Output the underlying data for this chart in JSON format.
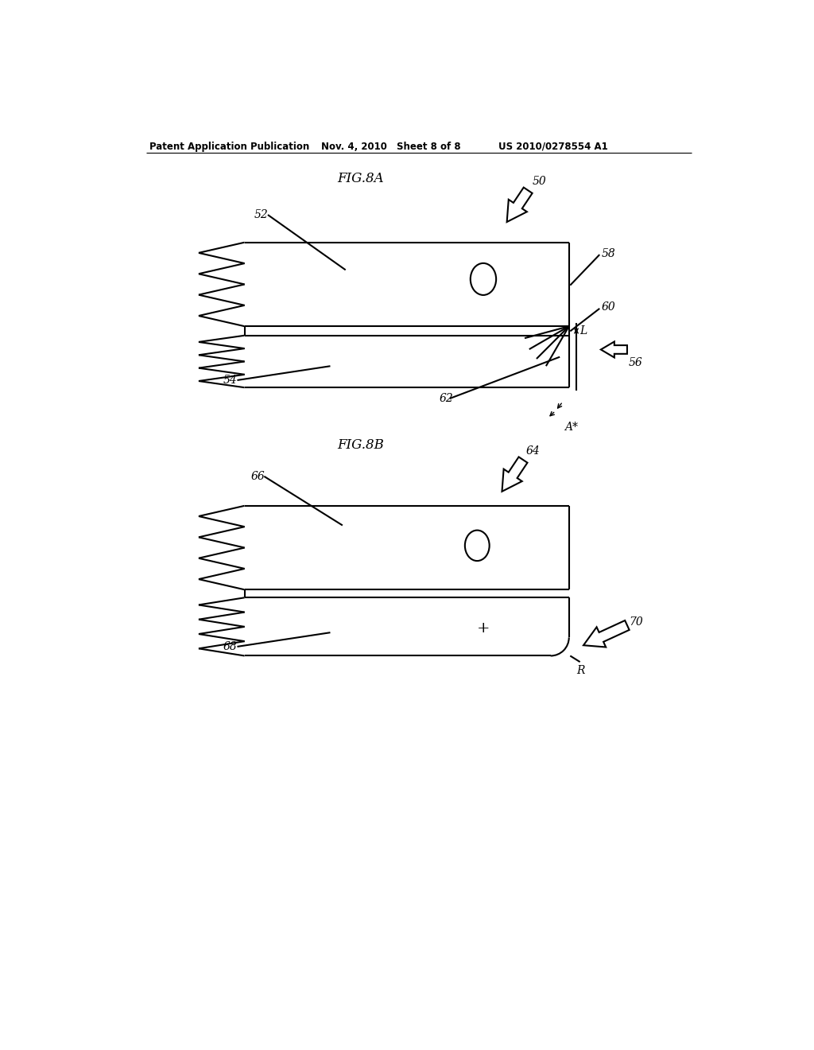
{
  "bg_color": "#ffffff",
  "header_text": "Patent Application Publication",
  "header_date": "Nov. 4, 2010",
  "header_sheet": "Sheet 8 of 8",
  "header_patent": "US 2010/0278554 A1",
  "fig_a_title": "FIG.8A",
  "fig_b_title": "FIG.8B",
  "line_color": "#000000",
  "label_color": "#000000",
  "lw": 1.5
}
